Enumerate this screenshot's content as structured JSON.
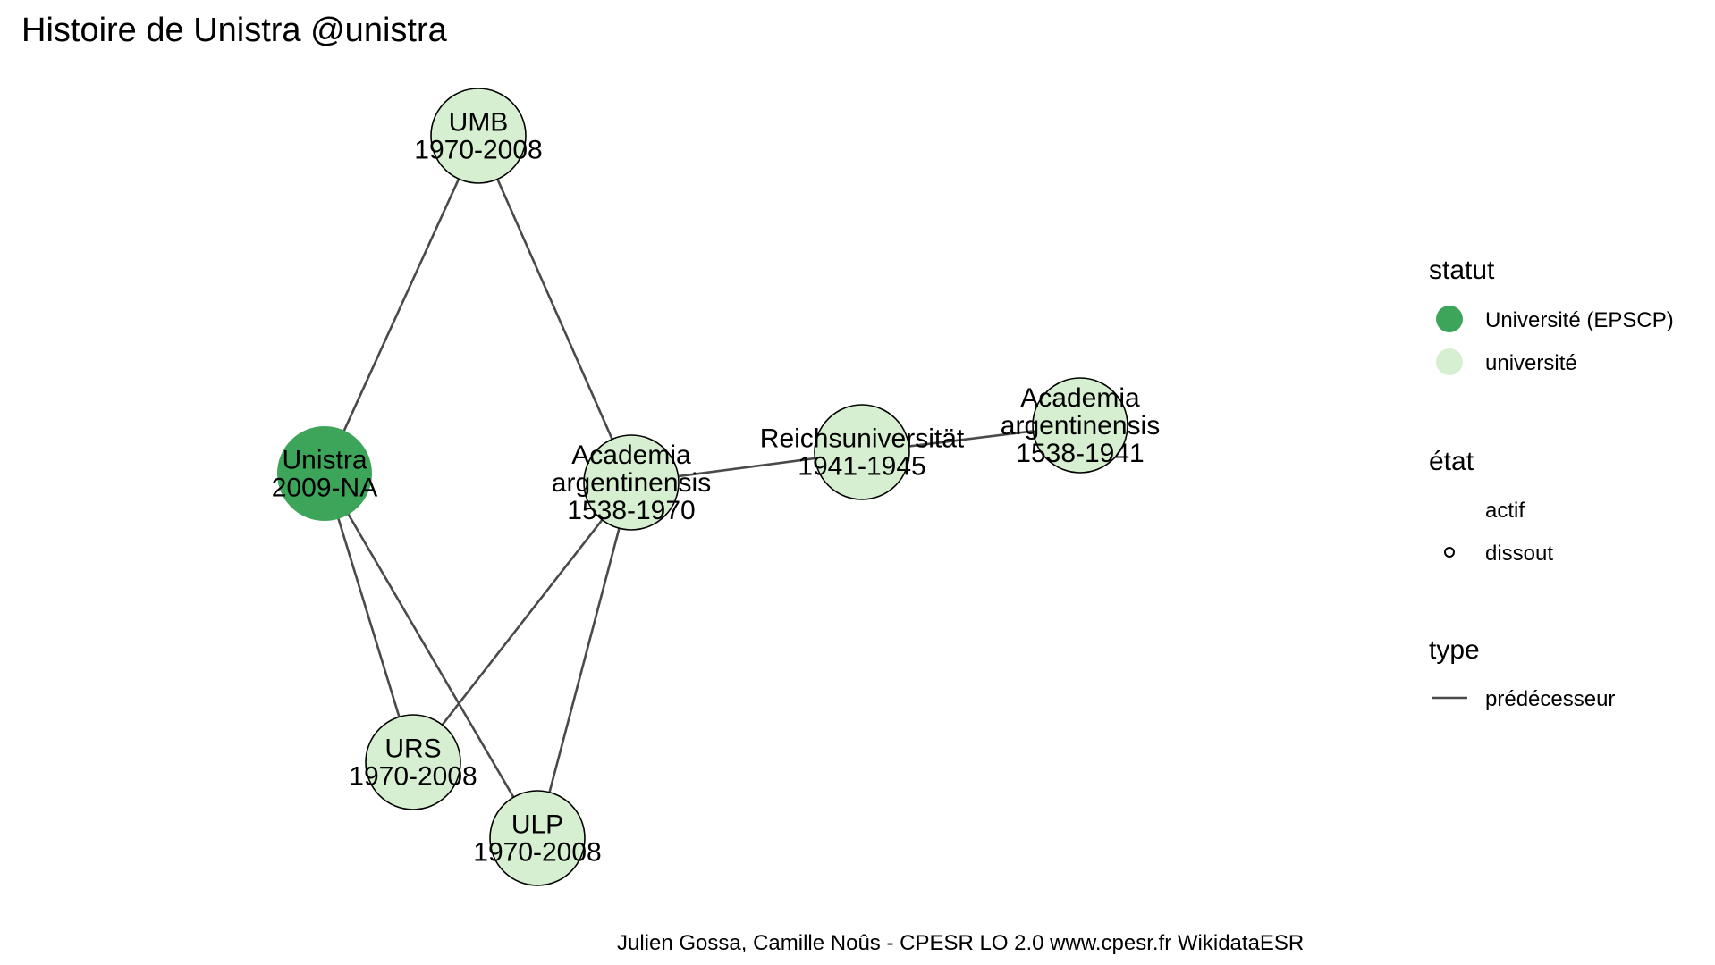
{
  "title": "Histoire de Unistra @unistra",
  "caption": "Julien Gossa, Camille Noûs - CPESR LO 2.0 www.cpesr.fr WikidataESR",
  "colors": {
    "epscp": "#3da55a",
    "universite": "#d7efd1",
    "edge": "#4a4a4a",
    "node_stroke": "#000000"
  },
  "nodes": [
    {
      "id": "umb",
      "name": "UMB",
      "dates": "1970-2008",
      "statut": "université",
      "etat": "dissout"
    },
    {
      "id": "unistra",
      "name": "Unistra",
      "dates": "2009-NA",
      "statut": "Université (EPSCP)",
      "etat": "actif"
    },
    {
      "id": "academia1970",
      "name_lines": [
        "Academia",
        "argentinensis"
      ],
      "dates": "1538-1970",
      "statut": "université",
      "etat": "dissout"
    },
    {
      "id": "reichs",
      "name": "Reichsuniversität",
      "dates": "1941-1945",
      "statut": "université",
      "etat": "dissout"
    },
    {
      "id": "academia1941",
      "name_lines": [
        "Academia",
        "argentinensis"
      ],
      "dates": "1538-1941",
      "statut": "université",
      "etat": "dissout"
    },
    {
      "id": "urs",
      "name": "URS",
      "dates": "1970-2008",
      "statut": "université",
      "etat": "dissout"
    },
    {
      "id": "ulp",
      "name": "ULP",
      "dates": "1970-2008",
      "statut": "université",
      "etat": "dissout"
    }
  ],
  "edges": [
    {
      "from": "umb",
      "to": "unistra",
      "type": "prédécesseur"
    },
    {
      "from": "umb",
      "to": "academia1970",
      "type": "prédécesseur"
    },
    {
      "from": "academia1970",
      "to": "reichs",
      "type": "prédécesseur"
    },
    {
      "from": "reichs",
      "to": "academia1941",
      "type": "prédécesseur"
    },
    {
      "from": "unistra",
      "to": "urs",
      "type": "prédécesseur"
    },
    {
      "from": "unistra",
      "to": "ulp",
      "type": "prédécesseur"
    },
    {
      "from": "academia1970",
      "to": "urs",
      "type": "prédécesseur"
    },
    {
      "from": "academia1970",
      "to": "ulp",
      "type": "prédécesseur"
    }
  ],
  "legend": {
    "statut": {
      "title": "statut",
      "items": [
        {
          "label": "Université (EPSCP)",
          "color": "#3da55a"
        },
        {
          "label": "université",
          "color": "#d7efd1"
        }
      ]
    },
    "etat": {
      "title": "état",
      "items": [
        {
          "label": "actif"
        },
        {
          "label": "dissout"
        }
      ]
    },
    "type": {
      "title": "type",
      "items": [
        {
          "label": "prédécesseur"
        }
      ]
    }
  }
}
